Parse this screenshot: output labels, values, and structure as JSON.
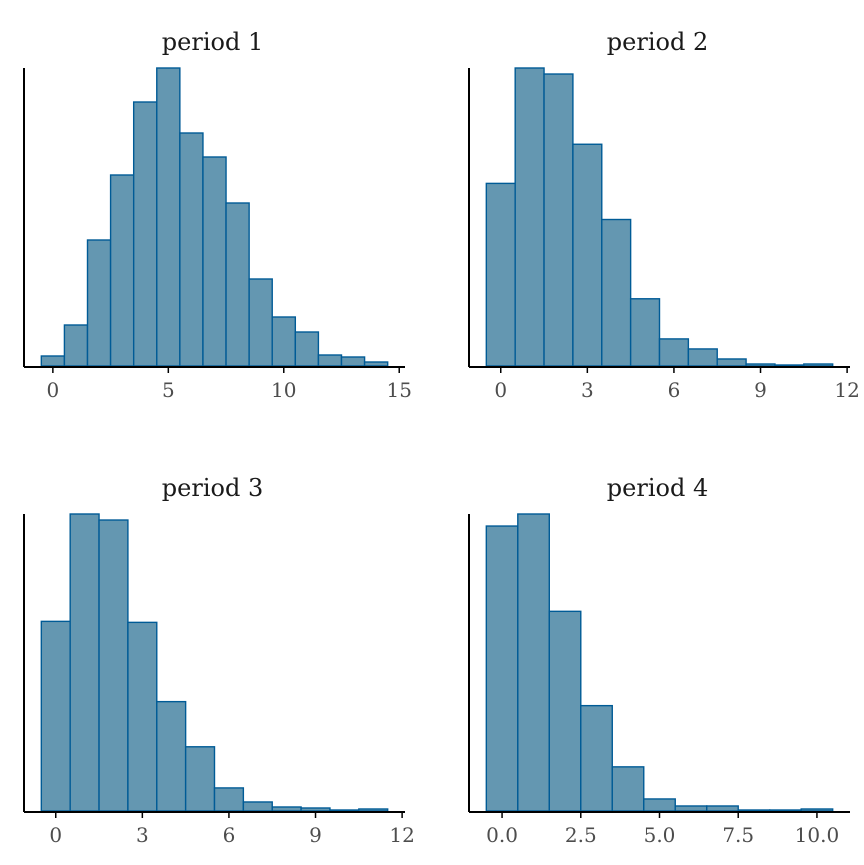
{
  "colors": {
    "bar_fill": "#6497b1",
    "bar_stroke": "#005b96",
    "axis": "#000000"
  },
  "chart_data": [
    {
      "type": "bar",
      "title": "period 1",
      "bin_width": 1,
      "bin_centers": [
        0,
        1,
        2,
        3,
        4,
        5,
        6,
        7,
        8,
        9,
        10,
        11,
        12,
        13,
        14
      ],
      "values": [
        10,
        41,
        126,
        191,
        264,
        298,
        233,
        209,
        163,
        87,
        49,
        34,
        11,
        9,
        4
      ],
      "xticks": [
        0,
        5,
        10,
        15
      ],
      "xtick_labels": [
        "0",
        "5",
        "10",
        "15"
      ],
      "grid": false
    },
    {
      "type": "bar",
      "title": "period 2",
      "bin_width": 1,
      "bin_centers": [
        0,
        1,
        2,
        3,
        4,
        5,
        6,
        7,
        8,
        9,
        10,
        11
      ],
      "values": [
        182,
        297,
        291,
        221,
        146,
        67,
        27,
        17,
        7,
        2,
        1,
        2
      ],
      "xticks": [
        0,
        3,
        6,
        9,
        12
      ],
      "xtick_labels": [
        "0",
        "3",
        "6",
        "9",
        "12"
      ],
      "grid": false
    },
    {
      "type": "bar",
      "title": "period 3",
      "bin_width": 1,
      "bin_centers": [
        0,
        1,
        2,
        3,
        4,
        5,
        6,
        7,
        8,
        9,
        10,
        11
      ],
      "values": [
        189,
        296,
        290,
        188,
        109,
        64,
        23,
        9,
        4,
        3,
        1,
        2
      ],
      "xticks": [
        0,
        3,
        6,
        9,
        12
      ],
      "xtick_labels": [
        "0",
        "3",
        "6",
        "9",
        "12"
      ],
      "grid": false
    },
    {
      "type": "bar",
      "title": "period 4",
      "bin_width": 1,
      "bin_centers": [
        0,
        1,
        2,
        3,
        4,
        5,
        6,
        7,
        8,
        9,
        10
      ],
      "values": [
        284,
        296,
        199,
        105,
        44,
        12,
        5,
        5,
        1,
        1,
        2
      ],
      "xticks": [
        0,
        2.5,
        5,
        7.5,
        10
      ],
      "xtick_labels": [
        "0.0",
        "2.5",
        "5.0",
        "7.5",
        "10.0"
      ],
      "grid": false
    }
  ]
}
